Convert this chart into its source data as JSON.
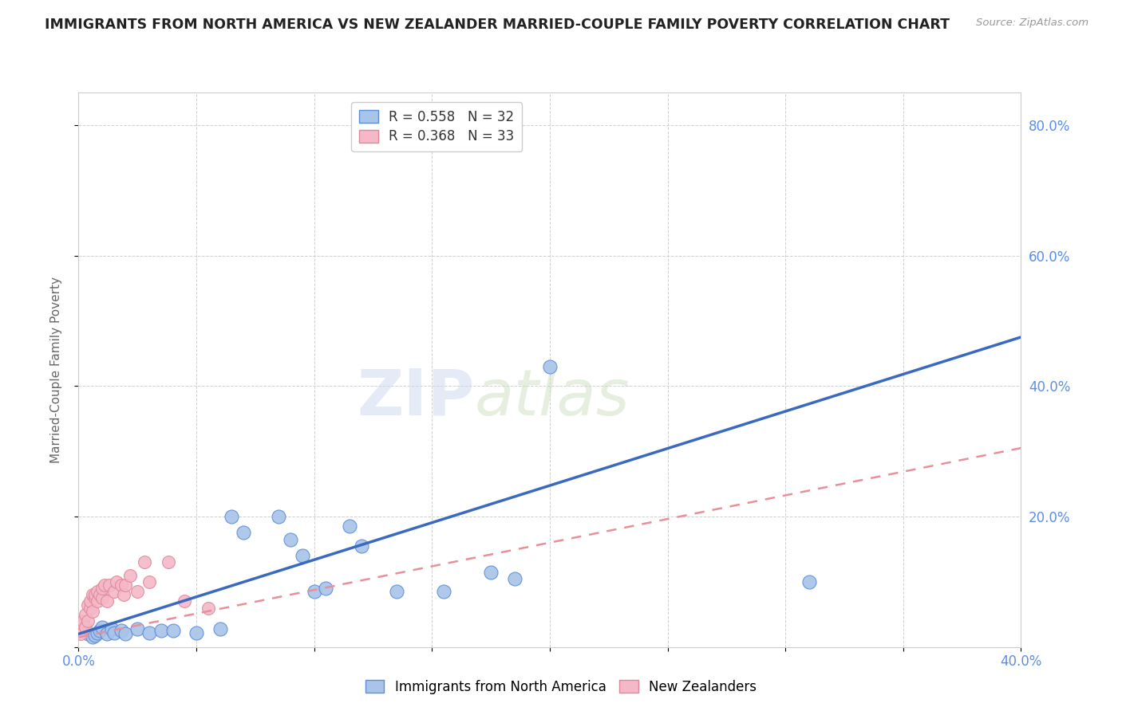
{
  "title": "IMMIGRANTS FROM NORTH AMERICA VS NEW ZEALANDER MARRIED-COUPLE FAMILY POVERTY CORRELATION CHART",
  "source": "Source: ZipAtlas.com",
  "ylabel": "Married-Couple Family Poverty",
  "xlim": [
    0.0,
    0.4
  ],
  "ylim": [
    0.0,
    0.85
  ],
  "xticks": [
    0.0,
    0.05,
    0.1,
    0.15,
    0.2,
    0.25,
    0.3,
    0.35,
    0.4
  ],
  "xtick_labels": [
    "0.0%",
    "",
    "",
    "",
    "",
    "",
    "",
    "",
    "40.0%"
  ],
  "yticks": [
    0.0,
    0.2,
    0.4,
    0.6,
    0.8
  ],
  "ytick_labels": [
    "",
    "20.0%",
    "40.0%",
    "60.0%",
    "80.0%"
  ],
  "blue_color": "#a8c4e8",
  "pink_color": "#f4b8c8",
  "blue_edge_color": "#5b8dd9",
  "pink_edge_color": "#e08898",
  "blue_line_color": "#3a6abf",
  "pink_line_color": "#e8909a",
  "legend_blue_label": "R = 0.558   N = 32",
  "legend_pink_label": "R = 0.368   N = 33",
  "blue_scatter_x": [
    0.004,
    0.006,
    0.007,
    0.008,
    0.009,
    0.01,
    0.012,
    0.014,
    0.015,
    0.018,
    0.02,
    0.025,
    0.03,
    0.035,
    0.04,
    0.05,
    0.06,
    0.065,
    0.07,
    0.085,
    0.09,
    0.095,
    0.1,
    0.105,
    0.115,
    0.12,
    0.135,
    0.155,
    0.175,
    0.185,
    0.2,
    0.31
  ],
  "blue_scatter_y": [
    0.02,
    0.015,
    0.018,
    0.022,
    0.025,
    0.03,
    0.02,
    0.028,
    0.022,
    0.025,
    0.02,
    0.028,
    0.022,
    0.025,
    0.025,
    0.022,
    0.028,
    0.2,
    0.175,
    0.2,
    0.165,
    0.14,
    0.085,
    0.09,
    0.185,
    0.155,
    0.085,
    0.085,
    0.115,
    0.105,
    0.43,
    0.1
  ],
  "pink_scatter_x": [
    0.001,
    0.002,
    0.002,
    0.003,
    0.003,
    0.004,
    0.004,
    0.005,
    0.005,
    0.006,
    0.006,
    0.007,
    0.007,
    0.008,
    0.008,
    0.009,
    0.01,
    0.01,
    0.011,
    0.012,
    0.013,
    0.015,
    0.016,
    0.018,
    0.019,
    0.02,
    0.022,
    0.025,
    0.028,
    0.03,
    0.038,
    0.045,
    0.055
  ],
  "pink_scatter_y": [
    0.02,
    0.035,
    0.04,
    0.03,
    0.05,
    0.04,
    0.065,
    0.06,
    0.07,
    0.055,
    0.08,
    0.075,
    0.08,
    0.07,
    0.085,
    0.08,
    0.075,
    0.09,
    0.095,
    0.07,
    0.095,
    0.085,
    0.1,
    0.095,
    0.08,
    0.095,
    0.11,
    0.085,
    0.13,
    0.1,
    0.13,
    0.07,
    0.06
  ],
  "watermark_zip": "ZIP",
  "watermark_atlas": "atlas",
  "background_color": "#ffffff",
  "grid_color": "#d0d0d0"
}
